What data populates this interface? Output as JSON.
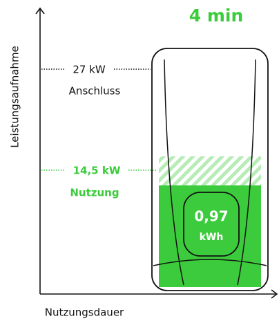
{
  "axes": {
    "y_label": "Leistungsaufnahme",
    "x_label": "Nutzungsdauer"
  },
  "duration": "4 min",
  "connection": {
    "power": "27 kW",
    "label": "Anschluss"
  },
  "usage": {
    "power": "14,5 kW",
    "label": "Nutzung"
  },
  "display": {
    "value": "0,97",
    "unit": "kWh"
  }
}
